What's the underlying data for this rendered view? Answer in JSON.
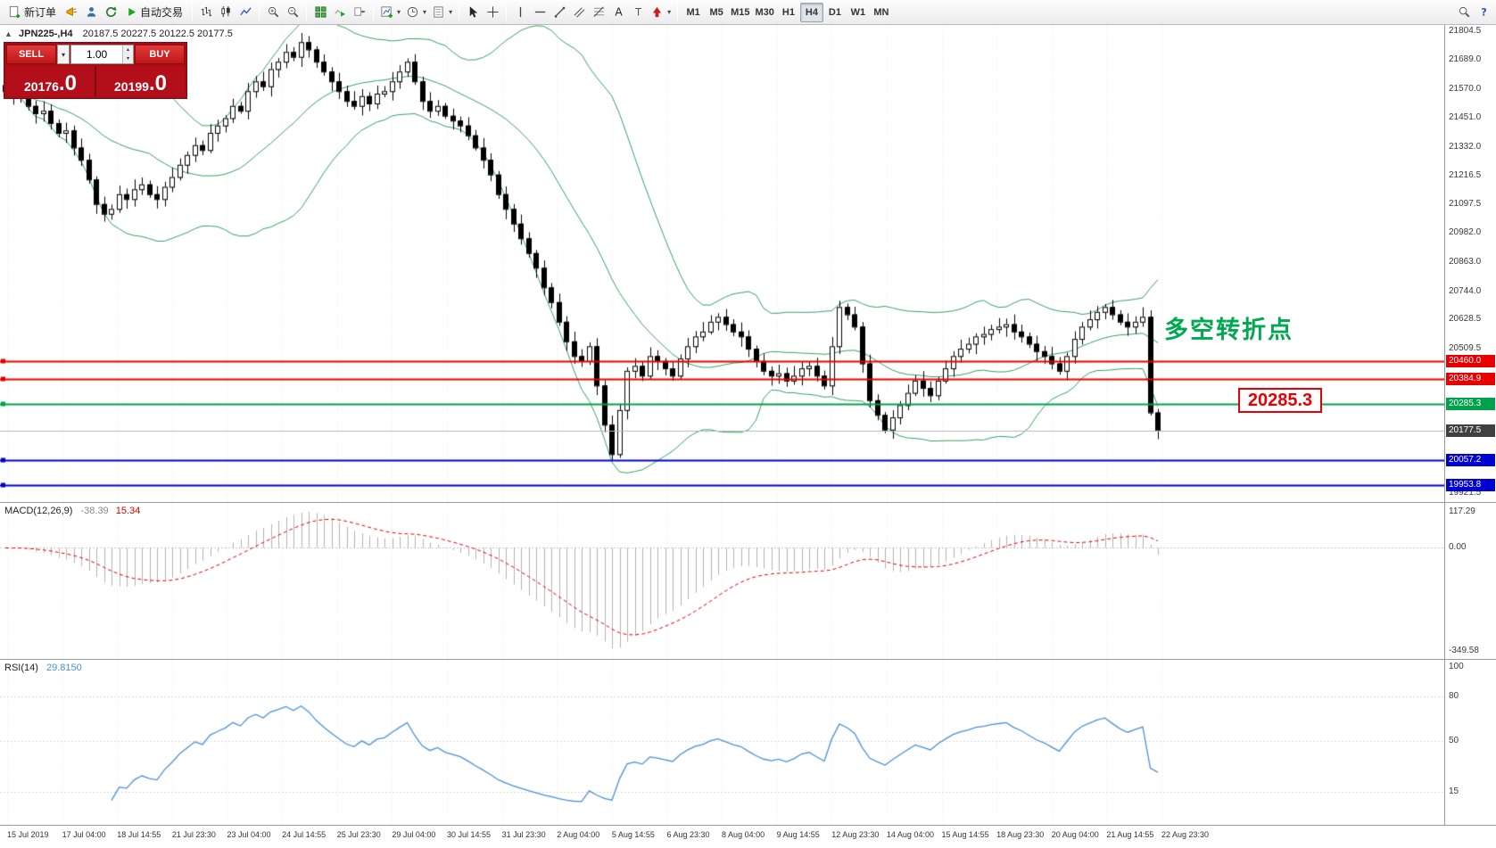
{
  "toolbar": {
    "new_order_label": "新订单",
    "autotrading_label": "自动交易",
    "timeframes": [
      "M1",
      "M5",
      "M15",
      "M30",
      "H1",
      "H4",
      "D1",
      "W1",
      "MN"
    ],
    "active_timeframe": "H4",
    "icon_names": [
      "new-order-icon",
      "megaphone-icon",
      "person-icon",
      "refresh-icon",
      "autotrading-play-icon",
      "bar-chart-icon",
      "candlestick-chart-icon",
      "line-chart-icon",
      "zoom-in-icon",
      "zoom-out-icon",
      "tile-windows-icon",
      "auto-scroll-icon",
      "chart-shift-icon",
      "new-chart-icon",
      "periods-clock-icon",
      "templates-icon",
      "cursor-icon",
      "crosshair-icon",
      "vertical-line-icon",
      "horizontal-line-icon",
      "trendline-icon",
      "channel-icon",
      "fibonacci-icon",
      "text-icon",
      "text-label-icon",
      "arrows-icon",
      "search-icon",
      "help-icon"
    ]
  },
  "chart": {
    "title": "JPN225-,H4",
    "ohlc": "20187.5 20227.5 20122.5 20177.5",
    "open": "20187.5",
    "high": "20227.5",
    "low": "20122.5",
    "close": "20177.5"
  },
  "one_click": {
    "sell_label": "SELL",
    "buy_label": "BUY",
    "volume": "1.00",
    "sell_price_main": "20176",
    "sell_price_big": ".0",
    "buy_price_main": "20199",
    "buy_price_big": ".0"
  },
  "annotations": {
    "turning_point_text": "多空转折点",
    "price_box": "20285.3"
  },
  "levels": [
    {
      "price": 20460.0,
      "label": "20460.0",
      "line": "#e80000",
      "tag": "#e80000",
      "width": 2,
      "handle": true
    },
    {
      "price": 20384.9,
      "label": "20384.9",
      "line": "#e80000",
      "tag": "#e80000",
      "width": 2,
      "handle": true
    },
    {
      "price": 20285.3,
      "label": "20285.3",
      "line": "#00a14b",
      "tag": "#00a14b",
      "width": 2,
      "handle": true
    },
    {
      "price": 20177.5,
      "label": "20177.5",
      "line": "#b8b8b8",
      "tag": "#404040",
      "width": 1,
      "handle": false
    },
    {
      "price": 20057.2,
      "label": "20057.2",
      "line": "#0000d2",
      "tag": "#0000d2",
      "width": 2,
      "handle": true
    },
    {
      "price": 19953.8,
      "label": "19953.8",
      "line": "#0000d2",
      "tag": "#0000d2",
      "width": 2,
      "handle": true
    }
  ],
  "price_axis": {
    "max": 21830,
    "min": 19885,
    "ticks": [
      21804.5,
      21689.0,
      21570.0,
      21451.0,
      21332.0,
      21216.5,
      21097.5,
      20982.0,
      20863.0,
      20744.0,
      20628.5,
      20509.5,
      20390.5,
      20271.5,
      20152.5,
      20033.5,
      19921.5
    ]
  },
  "macd": {
    "label": "MACD(12,26,9)",
    "value_main": "-38.39",
    "value_signal": "15.34",
    "axis": [
      117.29,
      0.0,
      -349.58
    ]
  },
  "rsi": {
    "label": "RSI(14)",
    "value": "29.8150",
    "ticks": [
      100,
      80,
      50,
      15
    ],
    "levels": [
      80,
      50,
      15
    ]
  },
  "time_axis": [
    "15 Jul 2019",
    "17 Jul 04:00",
    "18 Jul 14:55",
    "21 Jul 23:30",
    "23 Jul 04:00",
    "24 Jul 14:55",
    "25 Jul 23:30",
    "29 Jul 04:00",
    "30 Jul 14:55",
    "31 Jul 23:30",
    "2 Aug 04:00",
    "5 Aug 14:55",
    "6 Aug 23:30",
    "8 Aug 04:00",
    "9 Aug 14:55",
    "12 Aug 23:30",
    "14 Aug 04:00",
    "15 Aug 14:55",
    "18 Aug 23:30",
    "20 Aug 04:00",
    "21 Aug 14:55",
    "22 Aug 23:30"
  ],
  "chart_data": {
    "type": "candlestick",
    "symbol": "JPN225-",
    "period": "H4",
    "colors": {
      "bollinger": "#35a060",
      "bull": "#ffffff",
      "bear": "#000000",
      "outline": "#000000",
      "macd_hist": "#b2b2b2",
      "macd_signal": "#e00000",
      "rsi_line": "#4a90d9",
      "grid": "#ebebeb"
    },
    "indicators": {
      "bollinger": {
        "period": 20,
        "deviation": 2
      },
      "macd": {
        "fast": 12,
        "slow": 26,
        "signal": 9,
        "main": -38.39,
        "signal_value": 15.34
      },
      "rsi": {
        "period": 14,
        "value": 29.815
      }
    },
    "closes": [
      21560,
      21540,
      21555,
      21500,
      21470,
      21480,
      21430,
      21390,
      21400,
      21330,
      21280,
      21200,
      21100,
      21060,
      21080,
      21140,
      21120,
      21160,
      21180,
      21140,
      21120,
      21170,
      21210,
      21260,
      21300,
      21340,
      21320,
      21390,
      21420,
      21450,
      21500,
      21480,
      21560,
      21600,
      21580,
      21650,
      21680,
      21720,
      21700,
      21760,
      21730,
      21680,
      21640,
      21600,
      21560,
      21520,
      21500,
      21540,
      21510,
      21550,
      21560,
      21600,
      21640,
      21680,
      21600,
      21520,
      21480,
      21500,
      21460,
      21440,
      21420,
      21380,
      21330,
      21280,
      21220,
      21140,
      21080,
      21020,
      20960,
      20900,
      20840,
      20760,
      20700,
      20620,
      20540,
      20480,
      20460,
      20520,
      20360,
      20200,
      20080,
      20260,
      20420,
      20440,
      20400,
      20480,
      20460,
      20430,
      20400,
      20470,
      20520,
      20560,
      20580,
      20620,
      20640,
      20610,
      20580,
      20560,
      20510,
      20460,
      20420,
      20400,
      20410,
      20380,
      20400,
      20430,
      20440,
      20400,
      20360,
      20520,
      20680,
      20650,
      20600,
      20450,
      20300,
      20240,
      20180,
      20230,
      20280,
      20330,
      20380,
      20350,
      20320,
      20380,
      20430,
      20480,
      20510,
      20530,
      20560,
      20570,
      20590,
      20600,
      20610,
      20580,
      20560,
      20530,
      20500,
      20480,
      20450,
      20420,
      20480,
      20550,
      20600,
      20630,
      20660,
      20680,
      20650,
      20620,
      20600,
      20620,
      20640,
      20250,
      20177.5
    ]
  }
}
